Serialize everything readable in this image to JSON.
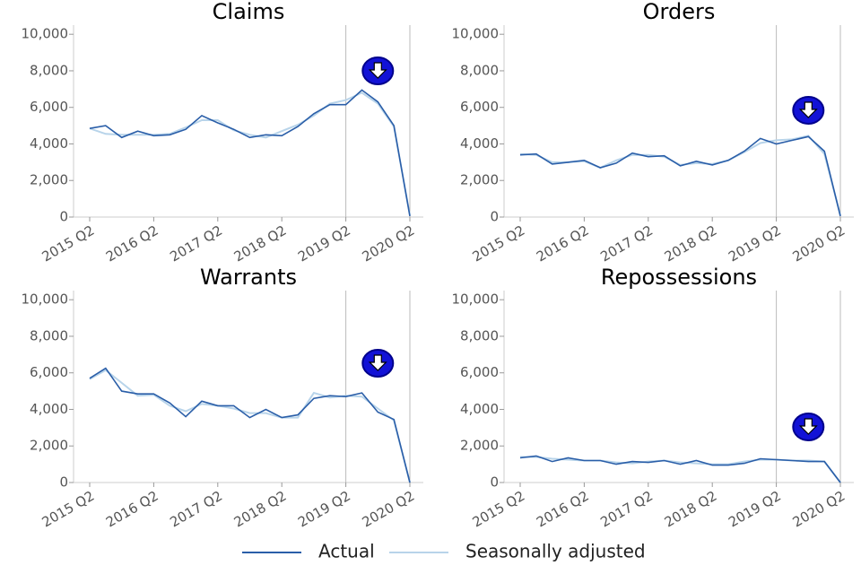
{
  "chart_data": [
    {
      "type": "line",
      "title": "Claims",
      "categories": [
        "2015 Q2",
        null,
        null,
        null,
        "2016 Q2",
        null,
        null,
        null,
        "2017 Q2",
        null,
        null,
        null,
        "2018 Q2",
        null,
        null,
        null,
        "2019 Q2",
        null,
        null,
        null,
        "2020 Q2"
      ],
      "series": [
        {
          "name": "Actual",
          "color": "#2a5ea8",
          "values": [
            4850,
            5000,
            4350,
            4700,
            4450,
            4500,
            4800,
            5550,
            5150,
            4800,
            4350,
            4500,
            4450,
            4950,
            5650,
            6150,
            6150,
            6950,
            6300,
            5000,
            50
          ]
        },
        {
          "name": "Seasonally adjusted",
          "color": "#b8d4ea",
          "values": [
            4850,
            4550,
            4500,
            4500,
            4500,
            4550,
            4900,
            5300,
            5300,
            4750,
            4500,
            4350,
            4700,
            5050,
            5550,
            6200,
            6400,
            6800,
            6200,
            4950,
            100
          ]
        }
      ],
      "ylim": [
        0,
        10500
      ],
      "yticks": [
        0,
        {
          "value": 2000,
          "label": "2,000"
        },
        {
          "value": 4000,
          "label": "4,000"
        },
        {
          "value": 6000,
          "label": "6,000"
        },
        {
          "value": 8000,
          "label": "8,000"
        },
        {
          "value": 10000,
          "label": "10,000"
        }
      ]
    },
    {
      "type": "line",
      "title": "Orders",
      "categories": [
        "2015 Q2",
        null,
        null,
        null,
        "2016 Q2",
        null,
        null,
        null,
        "2017 Q2",
        null,
        null,
        null,
        "2018 Q2",
        null,
        null,
        null,
        "2019 Q2",
        null,
        null,
        null,
        "2020 Q2"
      ],
      "series": [
        {
          "name": "Actual",
          "color": "#2a5ea8",
          "values": [
            3400,
            3450,
            2900,
            3000,
            3100,
            2700,
            2950,
            3500,
            3300,
            3350,
            2800,
            3050,
            2850,
            3100,
            3600,
            4300,
            4000,
            4200,
            4400,
            3600,
            50
          ]
        },
        {
          "name": "Seasonally adjusted",
          "color": "#b8d4ea",
          "values": [
            3450,
            3400,
            3000,
            3000,
            3050,
            2700,
            3100,
            3400,
            3400,
            3300,
            2850,
            2950,
            2900,
            3100,
            3550,
            4050,
            4200,
            4250,
            4450,
            3450,
            100
          ]
        }
      ],
      "ylim": [
        0,
        10500
      ],
      "yticks": [
        0,
        {
          "value": 2000,
          "label": "2,000"
        },
        {
          "value": 4000,
          "label": "4,000"
        },
        {
          "value": 6000,
          "label": "6,000"
        },
        {
          "value": 8000,
          "label": "8,000"
        },
        {
          "value": 10000,
          "label": "10,000"
        }
      ]
    },
    {
      "type": "line",
      "title": "Warrants",
      "categories": [
        "2015 Q2",
        null,
        null,
        null,
        "2016 Q2",
        null,
        null,
        null,
        "2017 Q2",
        null,
        null,
        null,
        "2018 Q2",
        null,
        null,
        null,
        "2019 Q2",
        null,
        null,
        null,
        "2020 Q2"
      ],
      "series": [
        {
          "name": "Actual",
          "color": "#2a5ea8",
          "values": [
            5700,
            6250,
            5000,
            4850,
            4850,
            4350,
            3600,
            4450,
            4200,
            4200,
            3550,
            4000,
            3550,
            3700,
            4600,
            4750,
            4700,
            4900,
            3850,
            3450,
            0
          ]
        },
        {
          "name": "Seasonally adjusted",
          "color": "#b8d4ea",
          "values": [
            5650,
            6150,
            5450,
            4750,
            4800,
            4200,
            3900,
            4300,
            4200,
            4050,
            3800,
            3800,
            3550,
            3550,
            4900,
            4650,
            4750,
            4700,
            4050,
            3400,
            0
          ]
        }
      ],
      "ylim": [
        0,
        10500
      ],
      "yticks": [
        0,
        {
          "value": 2000,
          "label": "2,000"
        },
        {
          "value": 4000,
          "label": "4,000"
        },
        {
          "value": 6000,
          "label": "6,000"
        },
        {
          "value": 8000,
          "label": "8,000"
        },
        {
          "value": 10000,
          "label": "10,000"
        }
      ]
    },
    {
      "type": "line",
      "title": "Repossessions",
      "categories": [
        "2015 Q2",
        null,
        null,
        null,
        "2016 Q2",
        null,
        null,
        null,
        "2017 Q2",
        null,
        null,
        null,
        "2018 Q2",
        null,
        null,
        null,
        "2019 Q2",
        null,
        null,
        null,
        "2020 Q2"
      ],
      "series": [
        {
          "name": "Actual",
          "color": "#2a5ea8",
          "values": [
            1350,
            1450,
            1150,
            1350,
            1200,
            1200,
            1000,
            1150,
            1100,
            1200,
            1000,
            1200,
            950,
            950,
            1050,
            1300,
            1250,
            1200,
            1150,
            1150,
            0
          ]
        },
        {
          "name": "Seasonally adjusted",
          "color": "#b8d4ea",
          "values": [
            1400,
            1400,
            1300,
            1250,
            1200,
            1200,
            1100,
            1050,
            1150,
            1200,
            1100,
            1050,
            1000,
            1000,
            1150,
            1250,
            1250,
            1200,
            1200,
            1150,
            0
          ]
        }
      ],
      "ylim": [
        0,
        10500
      ],
      "yticks": [
        0,
        {
          "value": 2000,
          "label": "2,000"
        },
        {
          "value": 4000,
          "label": "4,000"
        },
        {
          "value": 6000,
          "label": "6,000"
        },
        {
          "value": 8000,
          "label": "8,000"
        },
        {
          "value": 10000,
          "label": "10,000"
        }
      ]
    }
  ]
}
